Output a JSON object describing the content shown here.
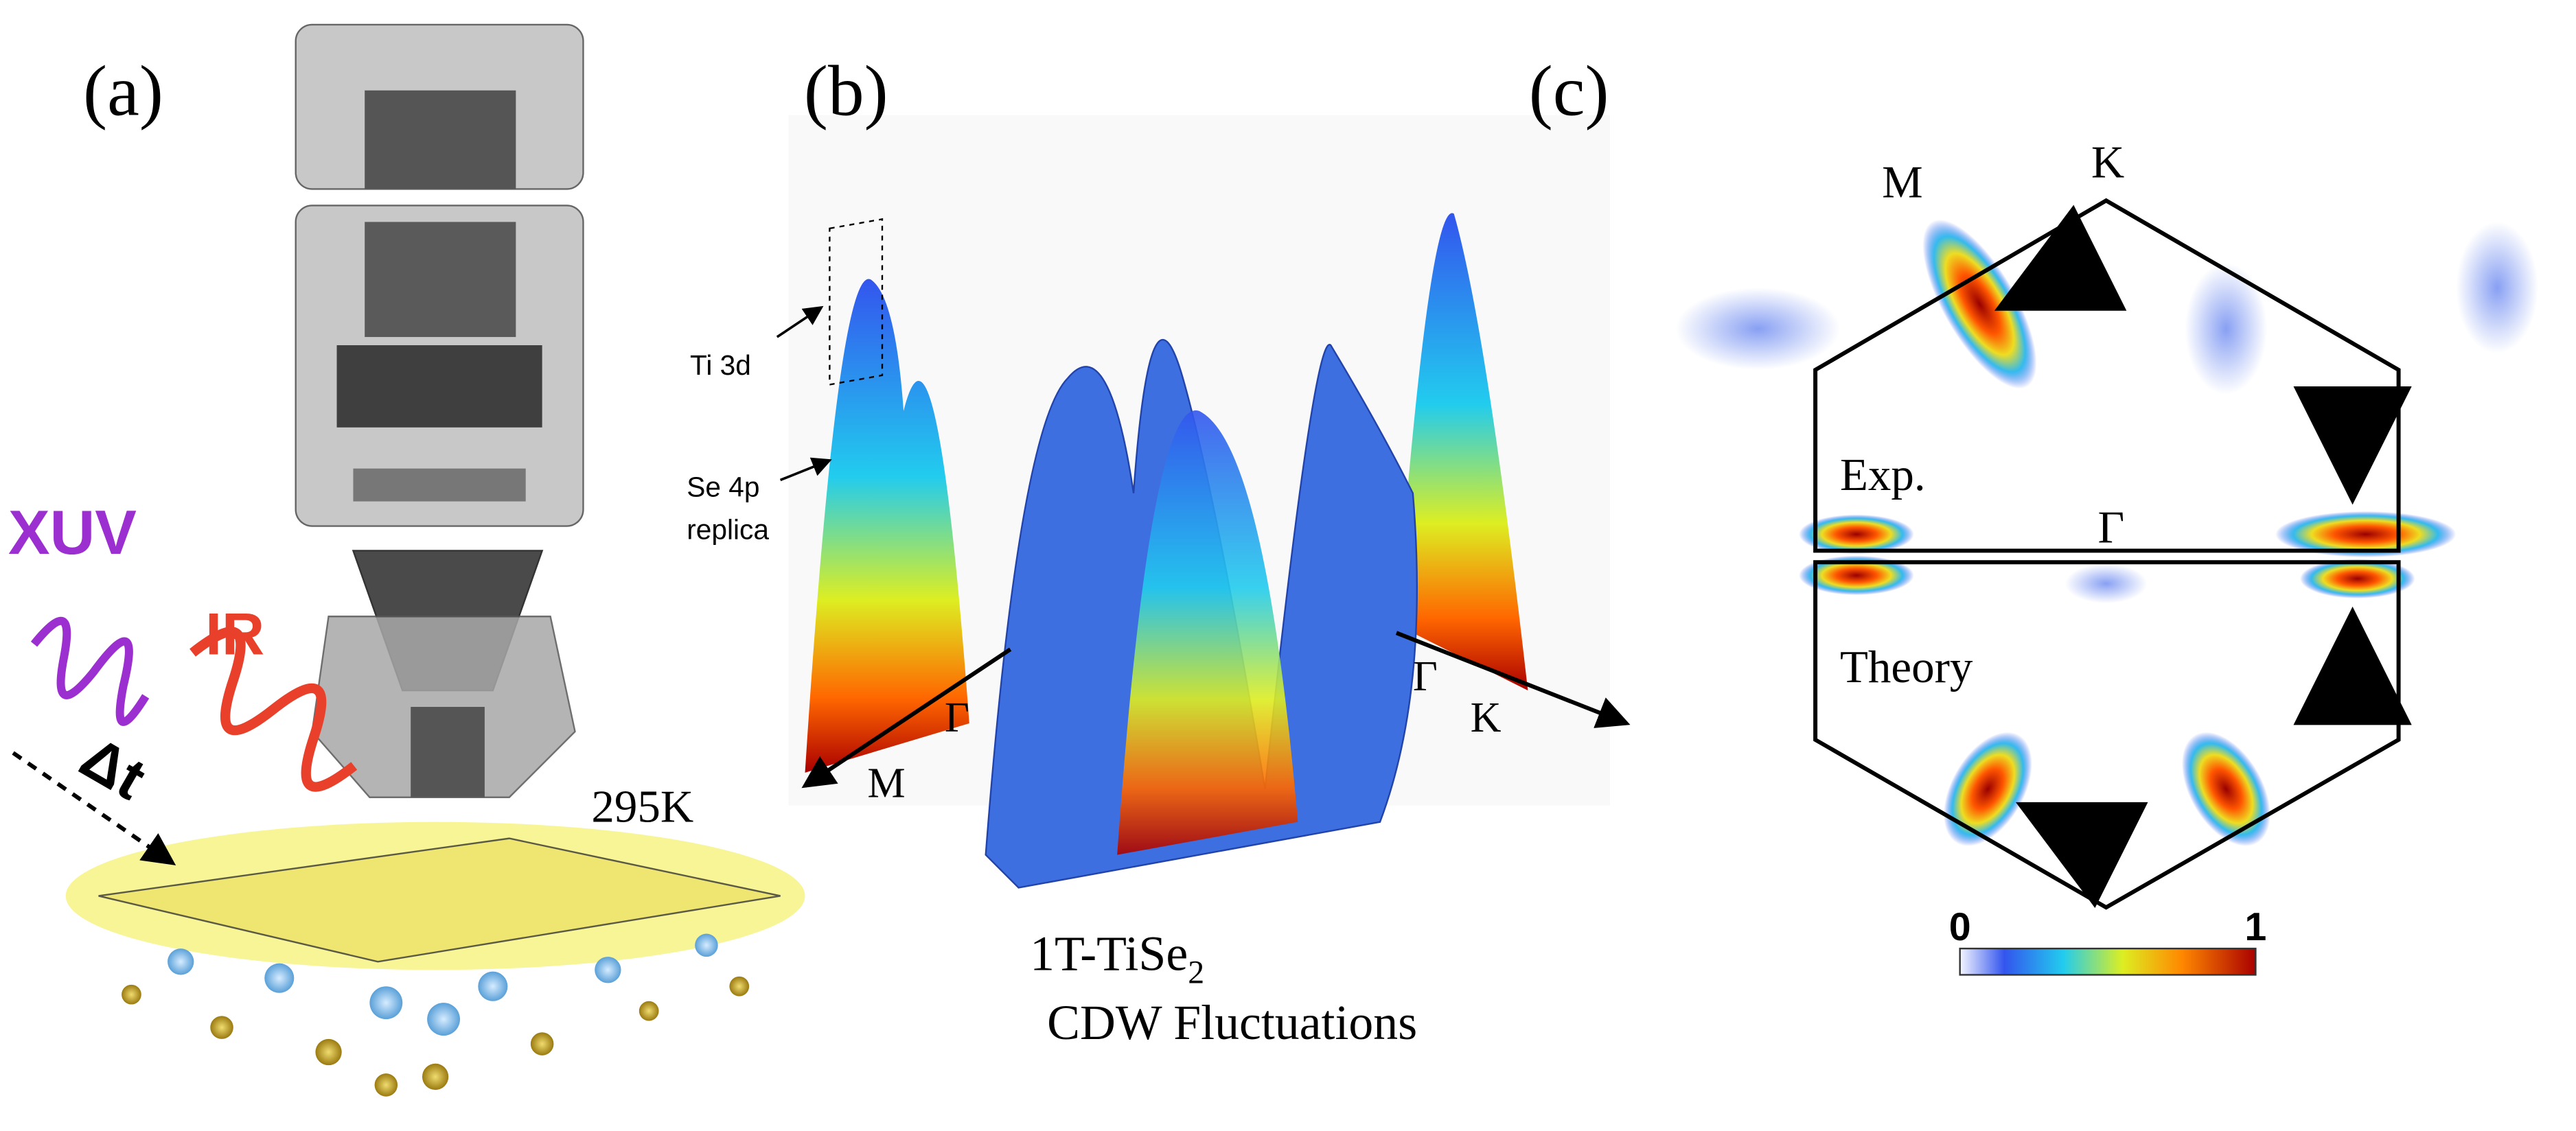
{
  "panel_a": {
    "label": "(a)",
    "xuv": "XUV",
    "ir": "IR",
    "delay": "Δt",
    "temperature": "295K"
  },
  "panel_b": {
    "label": "(b)",
    "annotations": [
      "Ti 3d",
      "Se 4p",
      "replica"
    ],
    "axis_labels": [
      "M",
      "Γ",
      "Γ",
      "K"
    ],
    "title_main": "1T-TiSe",
    "title_sub": "2",
    "subtitle": "CDW Fluctuations"
  },
  "panel_c": {
    "label": "(c)",
    "points": [
      "M",
      "K",
      "Γ"
    ],
    "exp": "Exp.",
    "theory": "Theory",
    "colorbar_min": "0",
    "colorbar_max": "1"
  }
}
